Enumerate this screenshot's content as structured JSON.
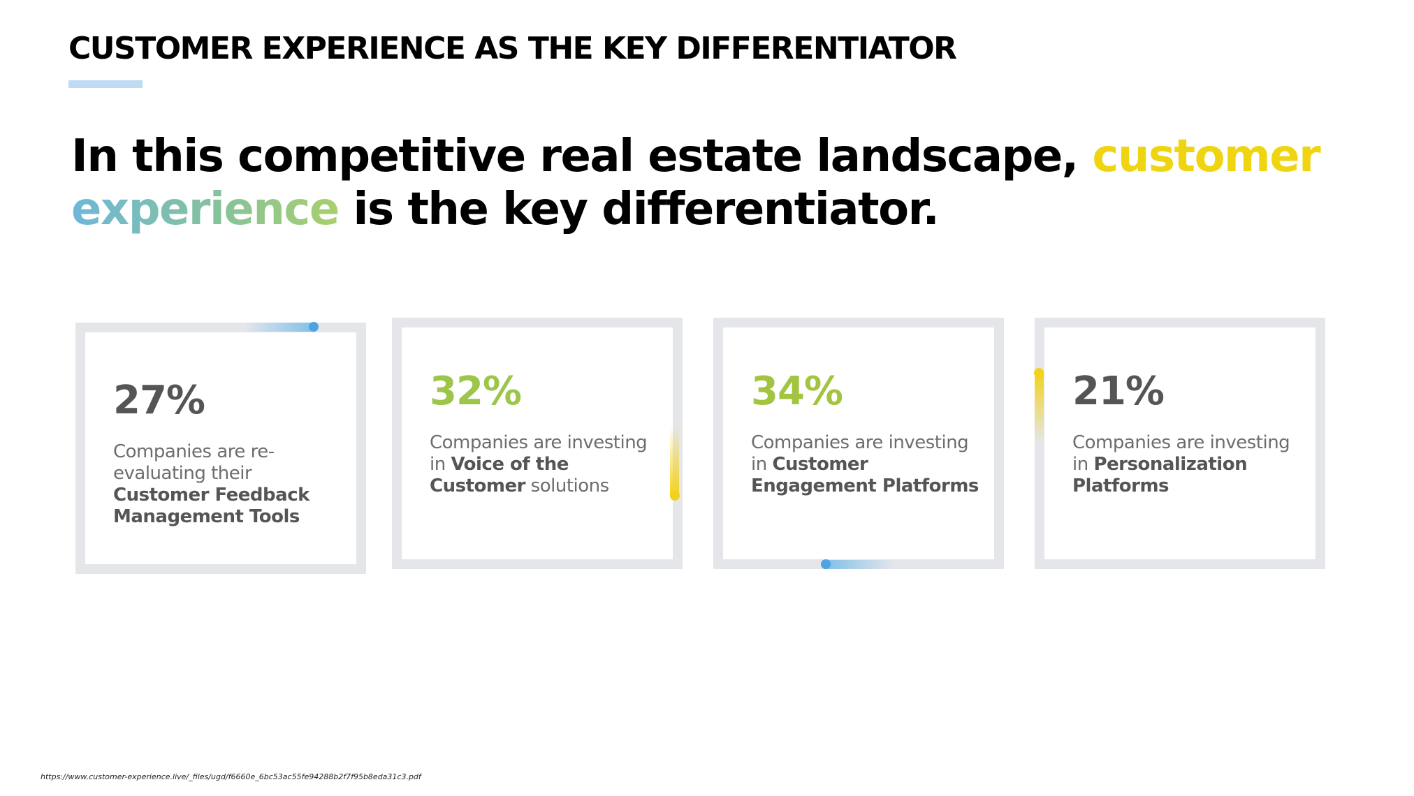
{
  "slide": {
    "section_title": "CUSTOMER EXPERIENCE AS THE KEY DIFFERENTIATOR",
    "headline": {
      "part1": "In this competitive real estate landscape, ",
      "highlight_yellow": "customer",
      "highlight_gradient": "experience",
      "part2": " is the key differentiator."
    },
    "source": "https://www.customer-experience.live/_files/ugd/f6660e_6bc53ac55fe94288b2f7f95b8eda31c3.pdf"
  },
  "cards": [
    {
      "stat": "27%",
      "desc_plain": "Companies are re-evaluating their ",
      "desc_strong": "Customer Feedback Management Tools",
      "desc_tail": ""
    },
    {
      "stat": "32%",
      "desc_plain": "Companies are investing in ",
      "desc_strong": "Voice of the Customer",
      "desc_tail": " solutions"
    },
    {
      "stat": "34%",
      "desc_plain": "Companies are investing in ",
      "desc_strong": "Customer Engagement Platforms",
      "desc_tail": ""
    },
    {
      "stat": "21%",
      "desc_plain": "Companies are investing in ",
      "desc_strong": "Personalization Platforms",
      "desc_tail": ""
    }
  ],
  "colors": {
    "yellow_highlight": "#efd511",
    "gradient_start": "#6fb7d8",
    "gradient_end": "#a9cf6c",
    "stat_gray": "#555555",
    "stat_green": "#9cc54a",
    "card_border": "#e4e6ea",
    "accent_blue": "#4ea3e2",
    "accent_yellow": "#f4d21c"
  }
}
